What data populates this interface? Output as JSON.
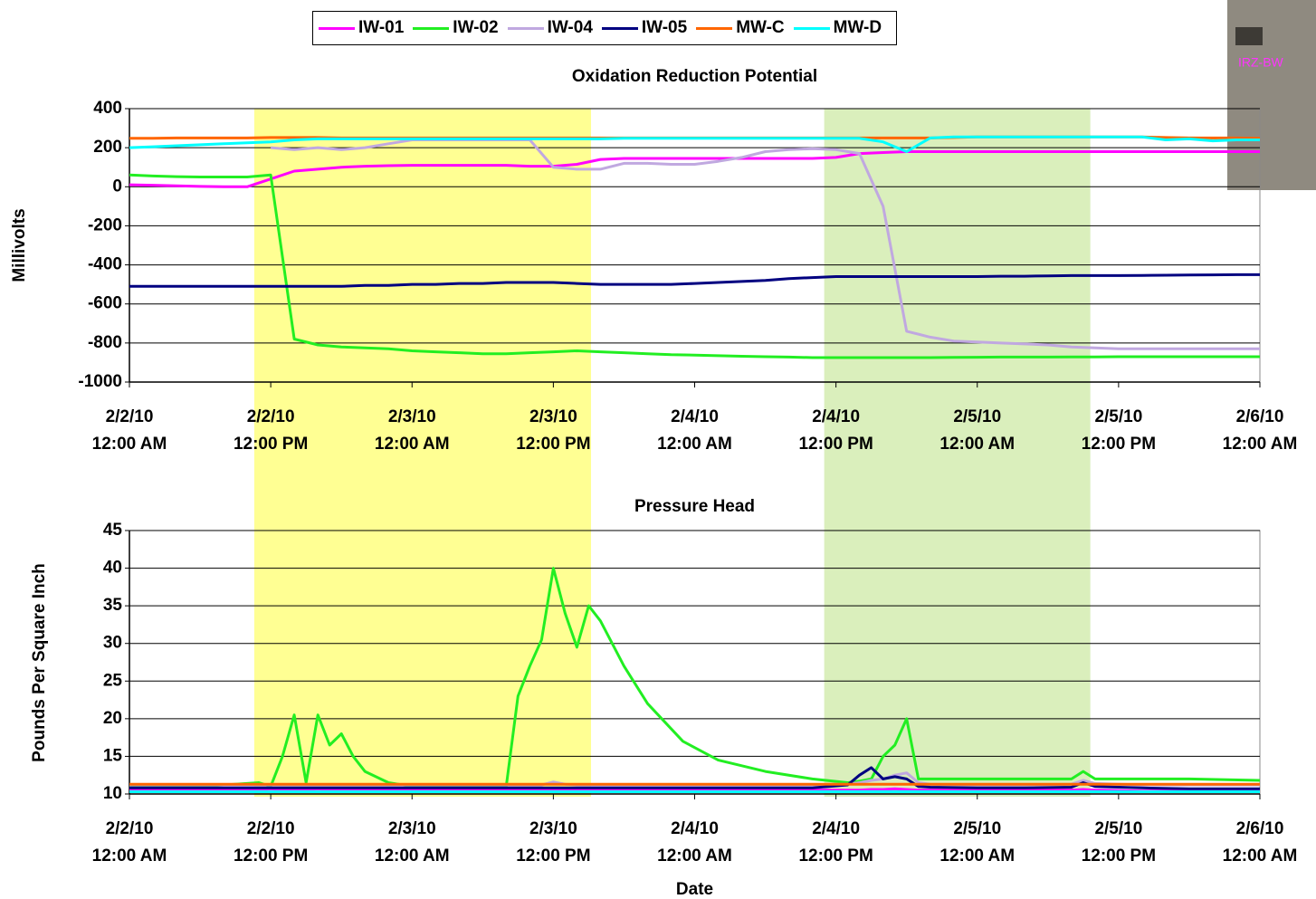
{
  "chart_data": [
    {
      "type": "line",
      "title": "Oxidation Reduction Potential",
      "ylabel": "Millivolts",
      "x": [
        0,
        2,
        4,
        6,
        8,
        10,
        12,
        14,
        16,
        18,
        20,
        22,
        24,
        26,
        28,
        30,
        32,
        34,
        36,
        38,
        40,
        42,
        44,
        46,
        48,
        50,
        52,
        54,
        56,
        58,
        60,
        62,
        64,
        66,
        68,
        70,
        72,
        74,
        76,
        78,
        80,
        82,
        84,
        86,
        88,
        90,
        92,
        94,
        96
      ],
      "xlim": [
        0,
        96
      ],
      "xticks": [
        {
          "value": 0,
          "label": "2/2/10\n12:00 AM"
        },
        {
          "value": 12,
          "label": "2/2/10\n12:00 PM"
        },
        {
          "value": 24,
          "label": "2/3/10\n12:00 AM"
        },
        {
          "value": 36,
          "label": "2/3/10\n12:00 PM"
        },
        {
          "value": 48,
          "label": "2/4/10\n12:00 AM"
        },
        {
          "value": 60,
          "label": "2/4/10\n12:00 PM"
        },
        {
          "value": 72,
          "label": "2/5/10\n12:00 AM"
        },
        {
          "value": 84,
          "label": "2/5/10\n12:00 PM"
        },
        {
          "value": 96,
          "label": "2/6/10\n12:00 AM"
        }
      ],
      "ylim": [
        -1000,
        400
      ],
      "yticks": [
        -1000,
        -800,
        -600,
        -400,
        -200,
        0,
        200,
        400
      ],
      "grid": true,
      "series": [
        {
          "name": "IW-01",
          "color": "#ff00ff",
          "values": [
            10,
            8,
            5,
            2,
            0,
            0,
            40,
            80,
            90,
            100,
            105,
            108,
            110,
            110,
            110,
            110,
            110,
            105,
            105,
            115,
            140,
            145,
            145,
            145,
            145,
            145,
            145,
            145,
            145,
            145,
            150,
            170,
            175,
            180,
            180,
            180,
            180,
            180,
            180,
            180,
            180,
            180,
            180,
            180,
            180,
            180,
            180,
            180,
            180
          ]
        },
        {
          "name": "IW-02",
          "color": "#22ee22",
          "values": [
            60,
            55,
            52,
            50,
            50,
            50,
            60,
            -780,
            -810,
            -820,
            -825,
            -830,
            -840,
            -845,
            -850,
            -855,
            -855,
            -850,
            -845,
            -840,
            -845,
            -850,
            -855,
            -860,
            -862,
            -865,
            -868,
            -870,
            -872,
            -875,
            -875,
            -875,
            -875,
            -875,
            -875,
            -874,
            -873,
            -872,
            -872,
            -872,
            -871,
            -871,
            -870,
            -870,
            -870,
            -870,
            -870,
            -870,
            -870
          ]
        },
        {
          "name": "IW-04",
          "color": "#c0a8e0",
          "values": [
            null,
            null,
            null,
            null,
            null,
            null,
            200,
            190,
            200,
            190,
            200,
            220,
            240,
            240,
            240,
            240,
            240,
            240,
            100,
            90,
            90,
            120,
            120,
            115,
            115,
            130,
            150,
            180,
            190,
            195,
            190,
            170,
            -100,
            -740,
            -770,
            -790,
            -795,
            -800,
            -805,
            -810,
            -820,
            -825,
            -830,
            -830,
            -830,
            -830,
            -830,
            -830,
            -830
          ]
        },
        {
          "name": "IW-05",
          "color": "#000080",
          "values": [
            -510,
            -510,
            -510,
            -510,
            -510,
            -510,
            -510,
            -510,
            -510,
            -510,
            -505,
            -505,
            -500,
            -500,
            -495,
            -495,
            -490,
            -490,
            -490,
            -495,
            -500,
            -500,
            -500,
            -500,
            -495,
            -490,
            -485,
            -480,
            -470,
            -465,
            -460,
            -460,
            -460,
            -460,
            -460,
            -460,
            -460,
            -458,
            -458,
            -456,
            -455,
            -455,
            -455,
            -454,
            -453,
            -452,
            -451,
            -450,
            -450
          ]
        },
        {
          "name": "MW-C",
          "color": "#ff6600",
          "values": [
            248,
            248,
            250,
            250,
            250,
            250,
            252,
            252,
            252,
            250,
            250,
            250,
            250,
            250,
            250,
            250,
            250,
            250,
            250,
            250,
            250,
            250,
            250,
            250,
            250,
            250,
            250,
            250,
            250,
            250,
            250,
            250,
            250,
            250,
            250,
            252,
            255,
            255,
            255,
            255,
            255,
            255,
            255,
            255,
            252,
            250,
            250,
            250,
            248
          ]
        },
        {
          "name": "MW-D",
          "color": "#00ffff",
          "values": [
            200,
            205,
            210,
            215,
            220,
            225,
            230,
            240,
            245,
            245,
            245,
            245,
            245,
            245,
            245,
            245,
            245,
            245,
            245,
            245,
            245,
            248,
            248,
            248,
            248,
            248,
            248,
            248,
            248,
            248,
            248,
            248,
            230,
            180,
            250,
            255,
            255,
            255,
            255,
            255,
            255,
            255,
            255,
            255,
            240,
            245,
            235,
            240,
            240
          ]
        }
      ]
    },
    {
      "type": "line",
      "title": "Pressure Head",
      "ylabel": "Pounds Per Square Inch",
      "xlabel": "Date",
      "x": [
        0,
        6,
        11,
        12,
        13,
        14,
        15,
        16,
        17,
        18,
        19,
        20,
        22,
        24,
        30,
        32,
        33,
        34,
        35,
        36,
        37,
        38,
        39,
        40,
        42,
        44,
        47,
        50,
        54,
        58,
        61,
        62,
        63,
        64,
        65,
        66,
        67,
        68,
        72,
        76,
        80,
        81,
        82,
        86,
        90,
        96
      ],
      "xlim": [
        0,
        96
      ],
      "xticks": [
        {
          "value": 0,
          "label": "2/2/10\n12:00 AM"
        },
        {
          "value": 12,
          "label": "2/2/10\n12:00 PM"
        },
        {
          "value": 24,
          "label": "2/3/10\n12:00 AM"
        },
        {
          "value": 36,
          "label": "2/3/10\n12:00 PM"
        },
        {
          "value": 48,
          "label": "2/4/10\n12:00 AM"
        },
        {
          "value": 60,
          "label": "2/4/10\n12:00 PM"
        },
        {
          "value": 72,
          "label": "2/5/10\n12:00 AM"
        },
        {
          "value": 84,
          "label": "2/5/10\n12:00 PM"
        },
        {
          "value": 96,
          "label": "2/6/10\n12:00 AM"
        }
      ],
      "ylim": [
        10,
        45
      ],
      "yticks": [
        10,
        15,
        20,
        25,
        30,
        35,
        40,
        45
      ],
      "grid": true,
      "series": [
        {
          "values": [
            10.6,
            10.6,
            10.6,
            10.7,
            10.6,
            10.6,
            10.6,
            10.7,
            10.6,
            10.6,
            10.6,
            10.6,
            10.5,
            10.5,
            10.5,
            10.5,
            10.5,
            10.5,
            10.6,
            10.6,
            10.6,
            10.6,
            10.5,
            10.5,
            10.5,
            10.5,
            10.5,
            10.5,
            10.5,
            10.5,
            10.5,
            10.5,
            10.6,
            10.6,
            10.7,
            10.6,
            10.5,
            10.5,
            10.5,
            10.5,
            10.5,
            10.6,
            10.5,
            10.4,
            10.4,
            10.4
          ]
        },
        {
          "values": [
            11,
            11,
            11.5,
            11,
            15,
            20.5,
            11.5,
            20.5,
            16.5,
            18,
            15,
            13,
            11.5,
            11,
            11,
            11,
            23,
            27,
            30.5,
            40,
            34,
            29.5,
            35,
            33,
            27,
            22,
            17,
            14.5,
            13,
            12,
            11.5,
            11.7,
            12,
            15,
            16.5,
            20,
            12,
            12,
            12,
            12,
            12,
            13,
            12,
            12,
            12,
            11.8
          ]
        },
        {
          "values": [
            11.2,
            11.2,
            11.2,
            11.2,
            11.2,
            11.2,
            11.2,
            11.2,
            11.2,
            11.2,
            11.2,
            11.2,
            11.2,
            11.2,
            11.2,
            11.2,
            11.2,
            11.2,
            11.2,
            11.6,
            11.3,
            11.2,
            11.2,
            11.2,
            11.2,
            11.2,
            11.2,
            11.2,
            11.2,
            11.2,
            11.3,
            11.5,
            11.8,
            12,
            12.5,
            12.8,
            11.5,
            11.3,
            11.2,
            11.2,
            11.3,
            11.8,
            11.4,
            11.2,
            11.2,
            11.2
          ]
        },
        {
          "values": [
            10.8,
            10.8,
            10.8,
            10.8,
            10.8,
            10.8,
            10.8,
            10.8,
            10.8,
            10.8,
            10.8,
            10.8,
            10.8,
            10.8,
            10.8,
            10.8,
            10.8,
            10.8,
            10.8,
            10.8,
            10.8,
            10.8,
            10.8,
            10.8,
            10.8,
            10.8,
            10.8,
            10.8,
            10.8,
            10.8,
            11.2,
            12.5,
            13.5,
            12,
            12.3,
            12,
            11,
            10.9,
            10.8,
            10.8,
            10.9,
            11.5,
            11,
            10.8,
            10.7,
            10.7
          ]
        },
        {
          "values": [
            11.3,
            11.3,
            11.3,
            11.3,
            11.3,
            11.3,
            11.3,
            11.3,
            11.3,
            11.3,
            11.3,
            11.3,
            11.3,
            11.3,
            11.3,
            11.3,
            11.3,
            11.3,
            11.3,
            11.3,
            11.3,
            11.3,
            11.3,
            11.3,
            11.3,
            11.3,
            11.3,
            11.3,
            11.3,
            11.3,
            11.3,
            11.3,
            11.3,
            11.3,
            11.3,
            11.3,
            11.3,
            11.3,
            11.3,
            11.3,
            11.3,
            11.3,
            11.3,
            11.3,
            11.3,
            11.3
          ]
        },
        {
          "values": [
            10.3,
            10.3,
            10.3,
            10.3,
            10.3,
            10.3,
            10.3,
            10.3,
            10.3,
            10.3,
            10.3,
            10.3,
            10.3,
            10.3,
            10.3,
            10.3,
            10.3,
            10.3,
            10.3,
            10.3,
            10.3,
            10.3,
            10.3,
            10.3,
            10.3,
            10.3,
            10.3,
            10.3,
            10.3,
            10.3,
            10.3,
            10.3,
            10.3,
            10.3,
            10.3,
            10.3,
            10.3,
            10.3,
            10.3,
            10.3,
            10.3,
            10.3,
            10.3,
            10.3,
            10.3,
            10.3
          ]
        }
      ]
    }
  ],
  "shaded_regions": [
    {
      "from": 10.6,
      "to": 39.2,
      "color": "#ffff80"
    },
    {
      "from": 59,
      "to": 81.6,
      "color": "#d4ecb0"
    }
  ],
  "inset_label": "IRZ-BW"
}
